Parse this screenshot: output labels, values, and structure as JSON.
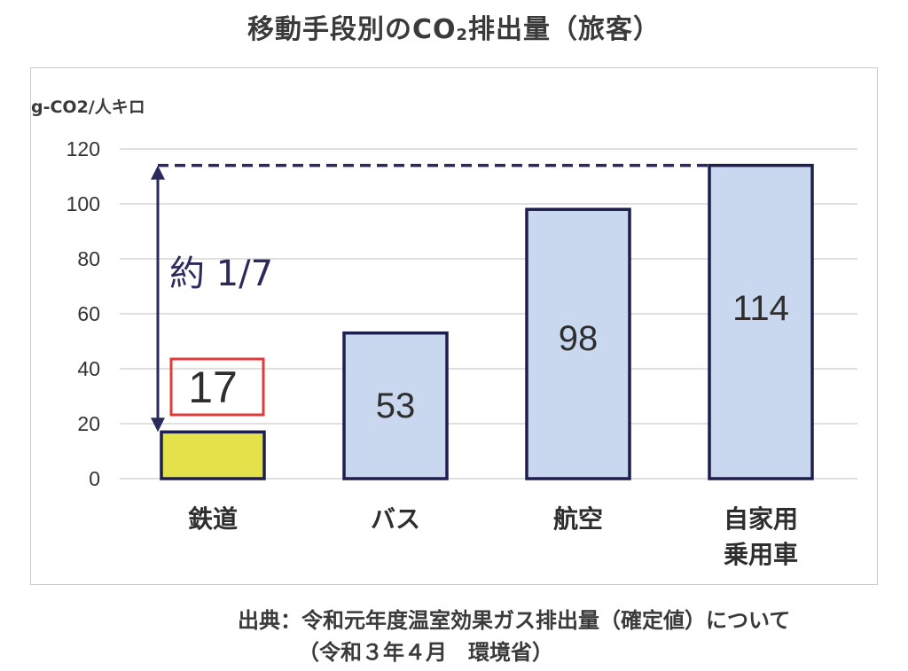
{
  "page": {
    "title_main": "移動手段別のCO",
    "title_sub": "2",
    "title_tail": "排出量（旅客）",
    "source_line1": "出典：令和元年度温室効果ガス排出量（確定値）について",
    "source_line2": "（令和３年４月　環境省）"
  },
  "chart_data": {
    "type": "bar",
    "title": "移動手段別のCO2排出量（旅客）",
    "ylabel": "g-CO2/人キロ",
    "xlabel": "",
    "categories": [
      [
        "鉄道"
      ],
      [
        "バス"
      ],
      [
        "航空"
      ],
      [
        "自家用",
        "乗用車"
      ]
    ],
    "values": [
      17,
      53,
      98,
      114
    ],
    "value_labels": [
      "17",
      "53",
      "98",
      "114"
    ],
    "ylim": [
      0,
      120
    ],
    "yticks": [
      0,
      20,
      40,
      60,
      80,
      100,
      120
    ],
    "ytick_labels": [
      "0",
      "20",
      "40",
      "60",
      "80",
      "100",
      "120"
    ],
    "grid": true,
    "colors": {
      "highlight_fill": "#e4e24a",
      "bar_fill": "#c9d8ee",
      "bar_stroke": "#1e1f4e",
      "grid": "#d6d6d6",
      "annotation": "#2a2a5c",
      "highlight_box": "#e03a3a"
    },
    "annotation": {
      "text": "約 1/7",
      "from_value": 17,
      "to_value": 114
    }
  }
}
